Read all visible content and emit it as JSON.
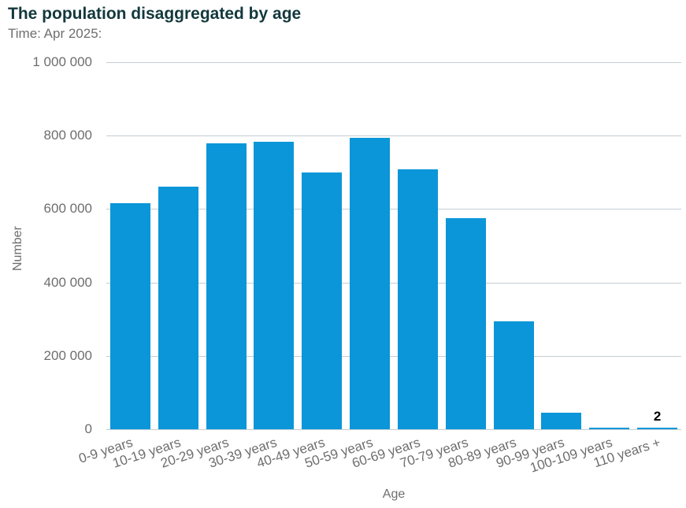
{
  "chart_data": {
    "type": "bar",
    "title": "The population disaggregated by age",
    "subtitle": "Time: Apr 2025:",
    "xlabel": "Age",
    "ylabel": "Number",
    "ylim": [
      0,
      1000000
    ],
    "grid": true,
    "legend": false,
    "categories": [
      "0-9 years",
      "10-19 years",
      "20-29 years",
      "30-39 years",
      "40-49 years",
      "50-59 years",
      "60-69 years",
      "70-79 years",
      "80-89 years",
      "90-99 years",
      "100-109 years",
      "110 years +"
    ],
    "values": [
      615000,
      660000,
      779000,
      784000,
      700000,
      795000,
      708000,
      576000,
      293000,
      46000,
      5000,
      2
    ],
    "yticks": [
      {
        "value": 0,
        "label": "0"
      },
      {
        "value": 200000,
        "label": "200 000"
      },
      {
        "value": 400000,
        "label": "400 000"
      },
      {
        "value": 600000,
        "label": "600 000"
      },
      {
        "value": 800000,
        "label": "800 000"
      },
      {
        "value": 1000000,
        "label": "1 000 000"
      }
    ],
    "data_labels": [
      {
        "index": 11,
        "text": "2"
      }
    ]
  },
  "colors": {
    "title": "#13383c",
    "axis_text": "#6e6e6e",
    "gridline": "#c3cdd3",
    "bar": "#0a96d8",
    "data_label": "#000000"
  }
}
